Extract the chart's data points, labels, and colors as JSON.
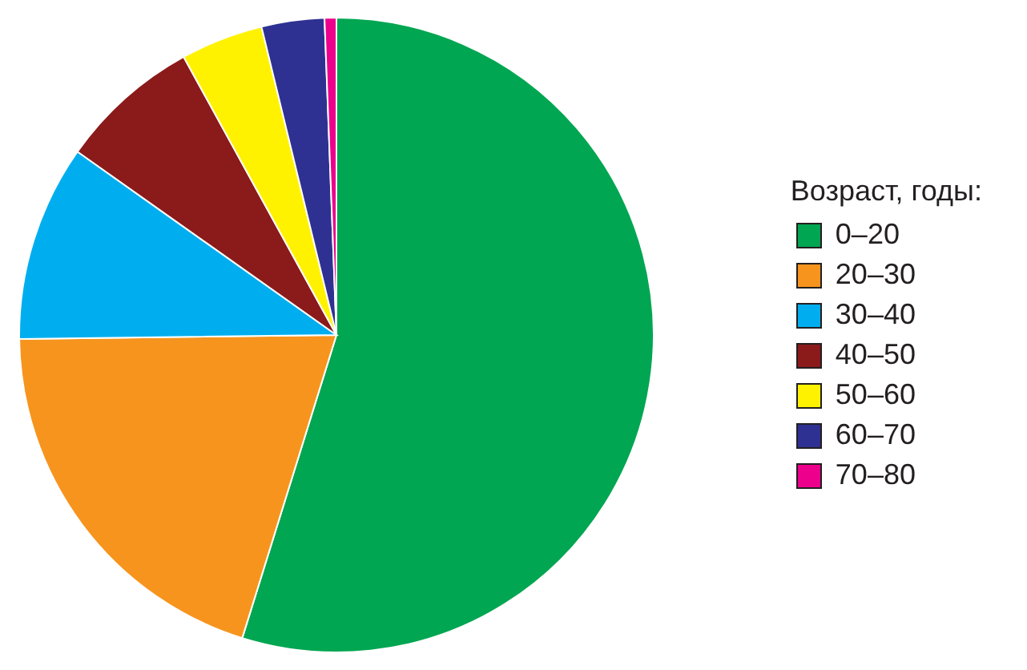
{
  "chart_data": {
    "type": "pie",
    "legend_title": "Возраст, годы:",
    "legend": "right",
    "categories": [
      "0–20",
      "20–30",
      "30–40",
      "40–50",
      "50–60",
      "60–70",
      "70–80"
    ],
    "values": [
      54.8,
      20,
      10,
      7.2,
      4.2,
      3.2,
      0.6
    ],
    "colors": [
      "#00a651",
      "#f7941d",
      "#00aeef",
      "#8b1a1a",
      "#fff200",
      "#2e3192",
      "#ec008c"
    ]
  }
}
